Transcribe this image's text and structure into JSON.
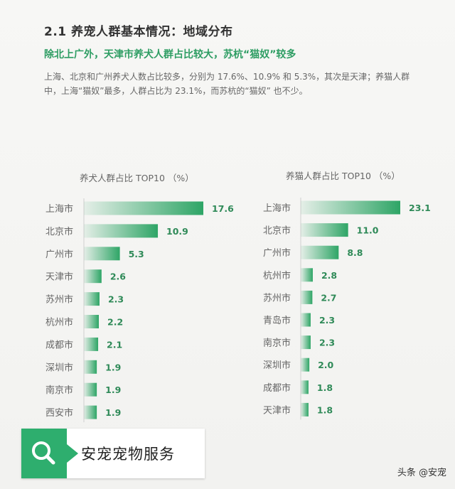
{
  "header": {
    "title": "2.1 养宠人群基本情况：地域分布",
    "subtitle": "除北上广外，天津市养犬人群占比较大，苏杭“猫奴”较多",
    "body": "上海、北京和广州养犬人数占比较多，分别为 17.6%、10.9% 和 5.3%，其次是天津；养猫人群中，上海“猫奴”最多，人群占比为 23.1%，而苏杭的“猫奴” 也不少。"
  },
  "chart_data": [
    {
      "type": "bar",
      "orientation": "horizontal",
      "title": "养犬人群占比 TOP10 （%）",
      "categories": [
        "上海市",
        "北京市",
        "广州市",
        "天津市",
        "苏州市",
        "杭州市",
        "成都市",
        "深圳市",
        "南京市",
        "西安市"
      ],
      "values": [
        17.6,
        10.9,
        5.3,
        2.6,
        2.3,
        2.2,
        2.1,
        1.9,
        1.9,
        1.9
      ],
      "value_labels": [
        "17.6",
        "10.9",
        "5.3",
        "2.6",
        "2.3",
        "2.2",
        "2.1",
        "1.9",
        "1.9",
        "1.9"
      ],
      "xlim": [
        0,
        17.6
      ],
      "color": "#2ea566"
    },
    {
      "type": "bar",
      "orientation": "horizontal",
      "title": "养猫人群占比 TOP10 （%）",
      "categories": [
        "上海市",
        "北京市",
        "广州市",
        "杭州市",
        "苏州市",
        "青岛市",
        "南京市",
        "深圳市",
        "成都市",
        "天津市"
      ],
      "values": [
        23.1,
        11.0,
        8.8,
        2.8,
        2.7,
        2.3,
        2.3,
        2.0,
        1.8,
        1.8
      ],
      "value_labels": [
        "23.1",
        "11.0",
        "8.8",
        "2.8",
        "2.7",
        "2.3",
        "2.3",
        "2.0",
        "1.8",
        "1.8"
      ],
      "xlim": [
        0,
        23.1
      ],
      "color": "#2ea566"
    }
  ],
  "watermark": {
    "text": "安宠宠物服务",
    "icon": "search-icon"
  },
  "credit": "头条 @安宠"
}
